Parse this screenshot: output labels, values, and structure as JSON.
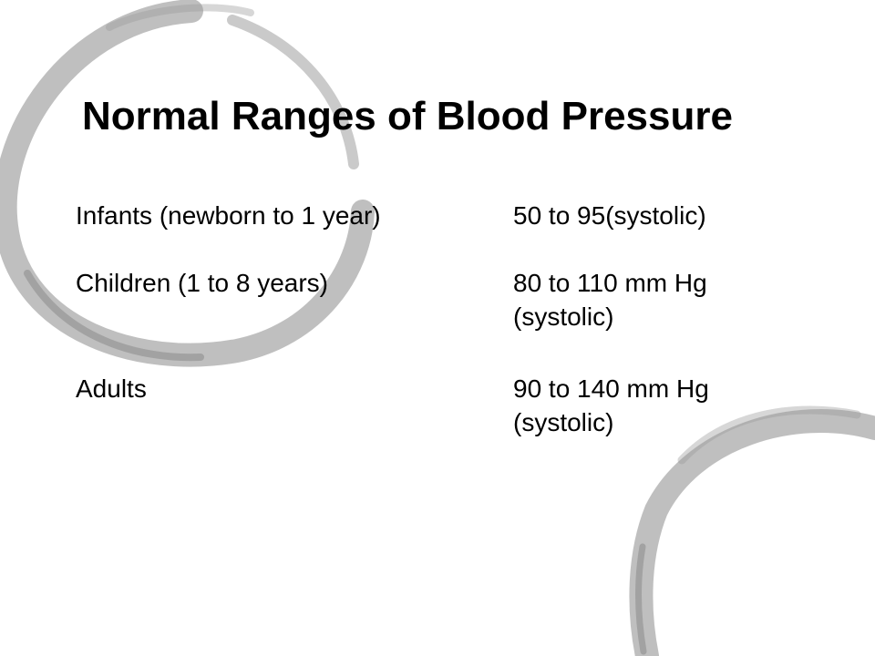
{
  "slide": {
    "title": "Normal Ranges of Blood Pressure",
    "background_color": "#ffffff",
    "decoration_color": "#8a8a8a",
    "decoration_icon": "brush-circle-icon",
    "rows": [
      {
        "group": "Infants (newborn to 1 year)",
        "range_lines": [
          "50 to 95(systolic)"
        ]
      },
      {
        "group": "Children (1 to 8 years)",
        "range_lines": [
          "80 to 110 mm Hg",
          "(systolic)"
        ]
      },
      {
        "group": "Adults",
        "range_lines": [
          "90 to 140 mm Hg",
          "(systolic)"
        ]
      }
    ]
  }
}
